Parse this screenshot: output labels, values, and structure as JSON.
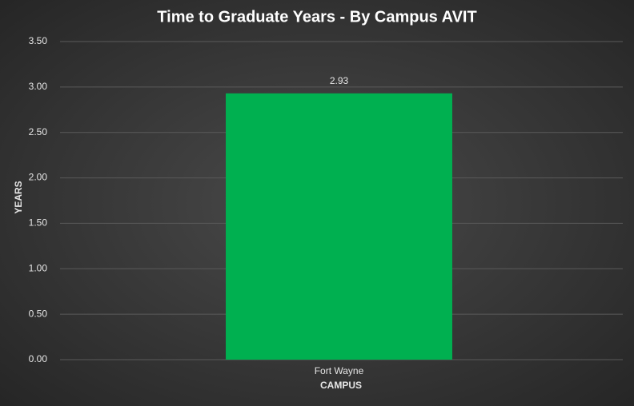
{
  "chart_data": {
    "type": "bar",
    "title": "Time to Graduate Years - By Campus AVIT",
    "x_label": "CAMPUS",
    "y_label": "YEARS",
    "categories": [
      "Fort Wayne"
    ],
    "values": [
      2.93
    ],
    "color": "#00b050",
    "ylim": [
      0,
      3.5
    ],
    "yticks": [
      {
        "value": 0,
        "label": "0.00"
      },
      {
        "value": 0.5,
        "label": "0.50"
      },
      {
        "value": 1,
        "label": "1.00"
      },
      {
        "value": 1.5,
        "label": "1.50"
      },
      {
        "value": 2,
        "label": "2.00"
      },
      {
        "value": 2.5,
        "label": "2.50"
      },
      {
        "value": 3,
        "label": "3.00"
      },
      {
        "value": 3.5,
        "label": "3.50"
      }
    ],
    "grid": true
  }
}
